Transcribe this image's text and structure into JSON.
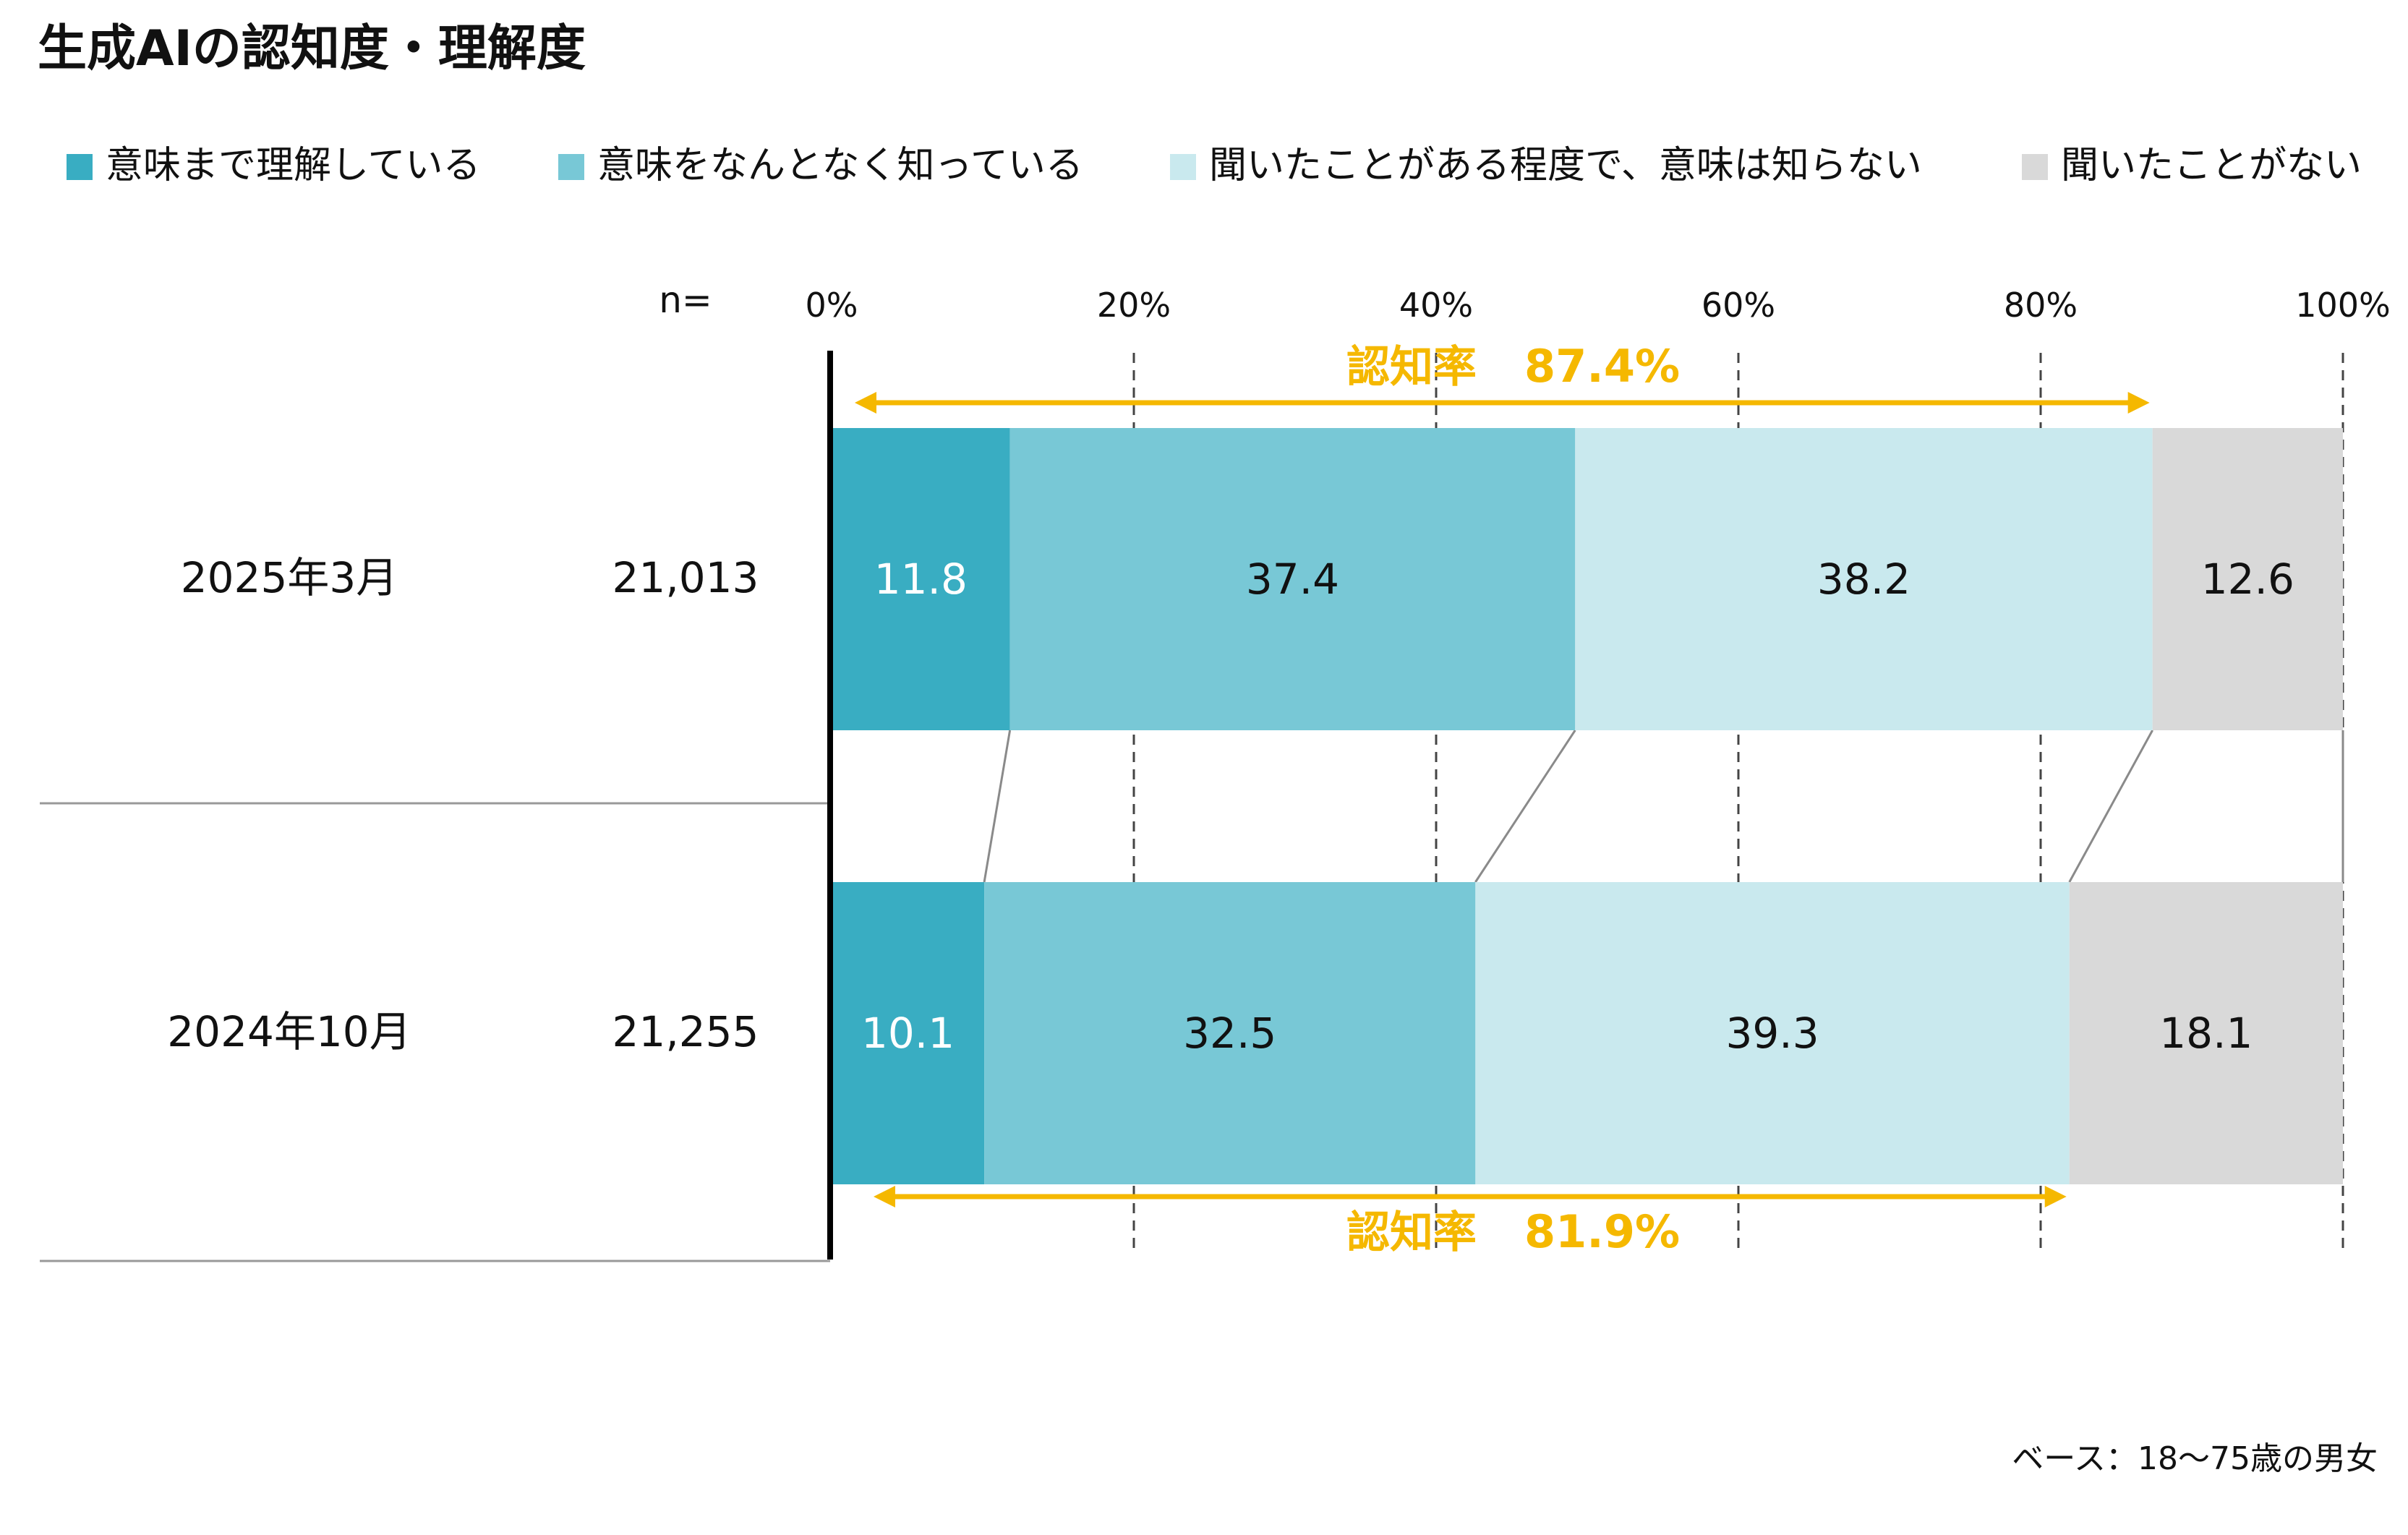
{
  "chart_data": {
    "type": "bar",
    "orientation": "horizontal",
    "stacked": true,
    "title": "生成AIの認知度・理解度",
    "n_header": "n=",
    "footnote": "ベース：18〜75歳の男女",
    "xlim": [
      0,
      100
    ],
    "x_ticks": [
      "0%",
      "20%",
      "40%",
      "60%",
      "80%",
      "100%"
    ],
    "x_tick_values": [
      0,
      20,
      40,
      60,
      80,
      100
    ],
    "grid": "vertical dashed",
    "legend_position": "top",
    "categories": [
      {
        "label": "2025年3月",
        "n": "21,013"
      },
      {
        "label": "2024年10月",
        "n": "21,255"
      }
    ],
    "series": [
      {
        "name": "意味まで理解している",
        "color": "#39adc2",
        "label_color": "#ffffff",
        "values": [
          11.8,
          10.1
        ]
      },
      {
        "name": "意味をなんとなく知っている",
        "color": "#78c8d6",
        "label_color": "#111111",
        "values": [
          37.4,
          32.5
        ]
      },
      {
        "name": "聞いたことがある程度で、意味は知らない",
        "color": "#c9e9ee",
        "label_color": "#111111",
        "values": [
          38.2,
          39.3
        ]
      },
      {
        "name": "聞いたことがない",
        "color": "#d9d9d9",
        "label_color": "#111111",
        "values": [
          12.6,
          18.1
        ]
      }
    ],
    "annotations": [
      {
        "category_index": 0,
        "label": "認知率",
        "value_text": "87.4%",
        "value": 87.4,
        "placement": "above"
      },
      {
        "category_index": 1,
        "label": "認知率",
        "value_text": "81.9%",
        "value": 81.9,
        "placement": "below"
      }
    ],
    "annotation_color": "#f5b800"
  }
}
